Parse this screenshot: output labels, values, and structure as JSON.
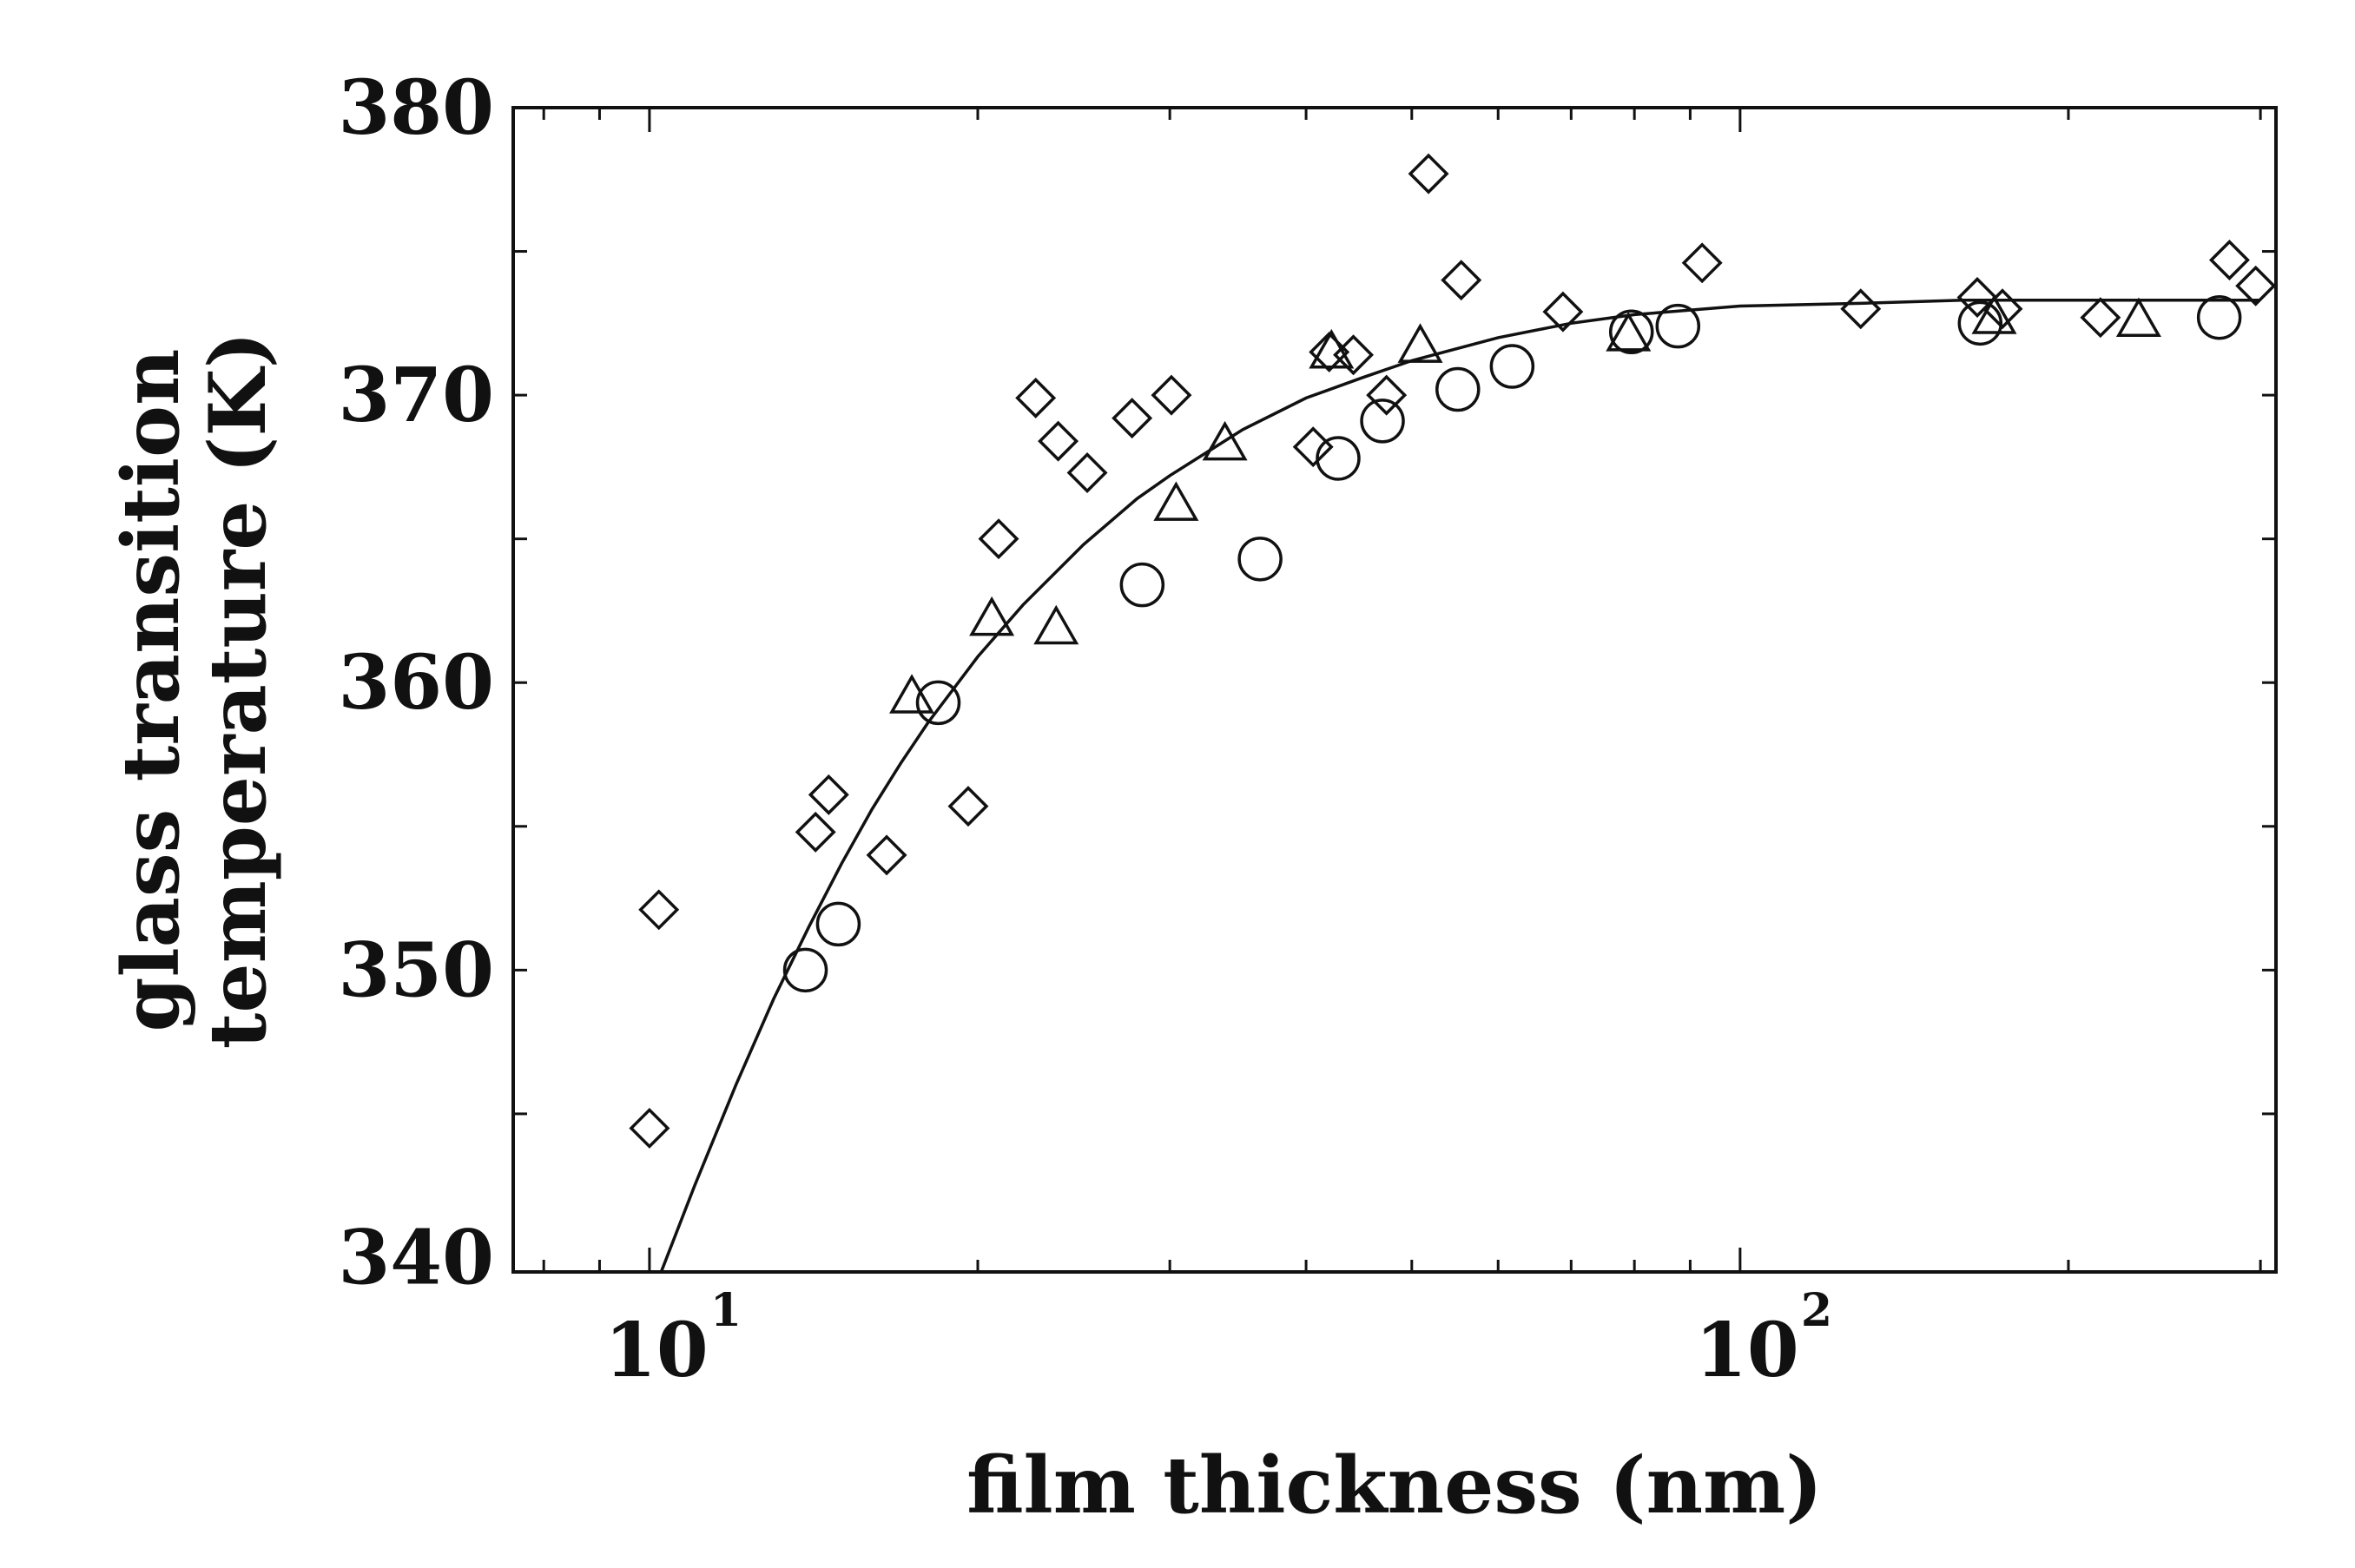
{
  "chart_data": {
    "type": "scatter",
    "xlabel": "film thickness (nm)",
    "ylabel_lines": [
      "glass transition",
      "temperature (K)"
    ],
    "x_scale": "log",
    "xlim": [
      7.5,
      310
    ],
    "ylim": [
      339.5,
      380
    ],
    "x_ticks": [
      {
        "base": "10",
        "exp": "1",
        "value": 10
      },
      {
        "base": "10",
        "exp": "2",
        "value": 100
      }
    ],
    "y_ticks": [
      "340",
      "350",
      "360",
      "370",
      "380"
    ],
    "grid": false,
    "legend": "none",
    "colors": {
      "ink": "#111111",
      "background": "#ffffff"
    },
    "series": [
      {
        "marker": "diamond",
        "points": [
          [
            10,
            344.5
          ],
          [
            10.2,
            352.1
          ],
          [
            14.2,
            354.8
          ],
          [
            14.6,
            356.1
          ],
          [
            16.5,
            354.0
          ],
          [
            19.6,
            355.7
          ],
          [
            20.9,
            365.0
          ],
          [
            22.6,
            369.9
          ],
          [
            23.7,
            368.4
          ],
          [
            25.2,
            367.3
          ],
          [
            27.7,
            369.2
          ],
          [
            30.1,
            370.0
          ],
          [
            40.6,
            368.2
          ],
          [
            42.0,
            371.5
          ],
          [
            44.2,
            371.4
          ],
          [
            47.4,
            370.0
          ],
          [
            51.8,
            377.7
          ],
          [
            55.5,
            374.0
          ],
          [
            68.8,
            372.9
          ],
          [
            92.3,
            374.6
          ],
          [
            129.0,
            373.0
          ],
          [
            165.0,
            373.4
          ],
          [
            174.0,
            373.0
          ],
          [
            214.0,
            372.7
          ],
          [
            281.0,
            374.7
          ],
          [
            297.0,
            373.8
          ]
        ]
      },
      {
        "marker": "triangle",
        "points": [
          [
            17.4,
            359.5
          ],
          [
            20.6,
            362.2
          ],
          [
            23.6,
            361.9
          ],
          [
            30.4,
            366.2
          ],
          [
            33.7,
            368.3
          ],
          [
            42.2,
            371.5
          ],
          [
            50.9,
            371.7
          ],
          [
            79.0,
            372.1
          ],
          [
            171.0,
            372.7
          ],
          [
            232.0,
            372.6
          ]
        ]
      },
      {
        "marker": "circle",
        "points": [
          [
            13.9,
            350.0
          ],
          [
            14.9,
            351.6
          ],
          [
            18.4,
            359.3
          ],
          [
            28.3,
            363.4
          ],
          [
            36.3,
            364.3
          ],
          [
            42.8,
            367.8
          ],
          [
            47.0,
            369.1
          ],
          [
            55.1,
            370.2
          ],
          [
            61.8,
            371.0
          ],
          [
            79.5,
            372.2
          ],
          [
            87.7,
            372.4
          ],
          [
            166.0,
            372.5
          ],
          [
            275.0,
            372.7
          ]
        ]
      }
    ],
    "fit_curve": {
      "points": [
        [
          10.25,
          339.5
        ],
        [
          11,
          342.5
        ],
        [
          12,
          346.0
        ],
        [
          13,
          349.0
        ],
        [
          14,
          351.5
        ],
        [
          15,
          353.7
        ],
        [
          16,
          355.6
        ],
        [
          17,
          357.2
        ],
        [
          18,
          358.6
        ],
        [
          20,
          360.9
        ],
        [
          22,
          362.7
        ],
        [
          25,
          364.8
        ],
        [
          28,
          366.4
        ],
        [
          30,
          367.2
        ],
        [
          35,
          368.8
        ],
        [
          40,
          369.9
        ],
        [
          45,
          370.6
        ],
        [
          50,
          371.2
        ],
        [
          60,
          372.0
        ],
        [
          70,
          372.5
        ],
        [
          80,
          372.8
        ],
        [
          100,
          373.1
        ],
        [
          130,
          373.2
        ],
        [
          160,
          373.3
        ],
        [
          200,
          373.3
        ],
        [
          300,
          373.3
        ]
      ]
    }
  }
}
